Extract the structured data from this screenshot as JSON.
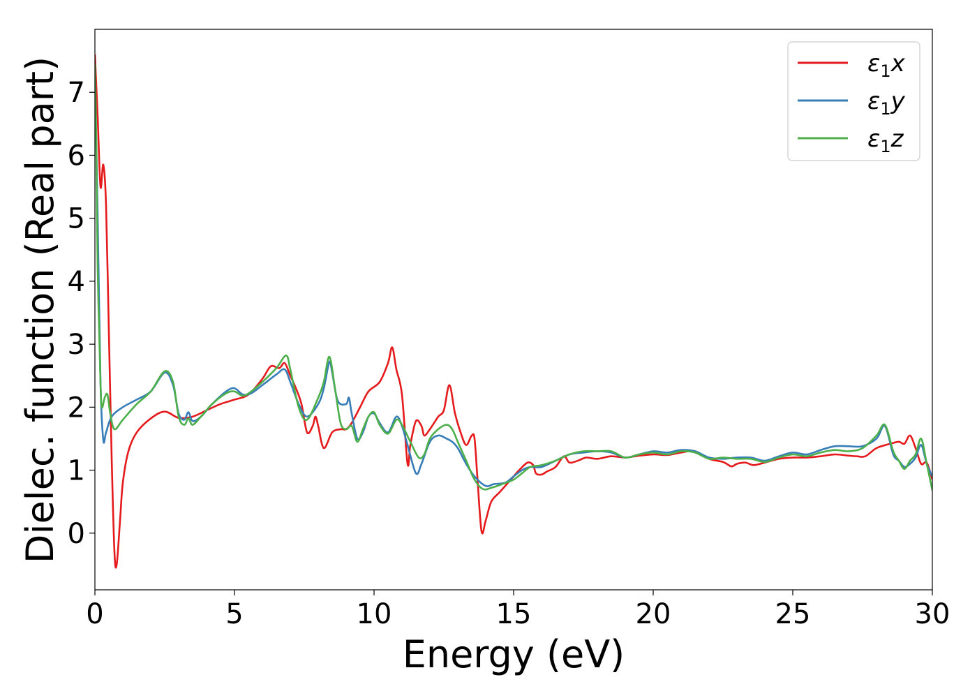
{
  "chart_data": {
    "type": "line",
    "title": "",
    "xlabel": "Energy (eV)",
    "ylabel": "Dielec. function (Real part)",
    "xlim": [
      0,
      30
    ],
    "ylim": [
      -0.9,
      8.0
    ],
    "xticks": [
      0,
      5,
      10,
      15,
      20,
      25,
      30
    ],
    "yticks": [
      0,
      1,
      2,
      3,
      4,
      5,
      6,
      7
    ],
    "grid": false,
    "legend_position": "top-right",
    "series": [
      {
        "name_symbol": "ε",
        "name_sub": "1",
        "name_axis": "x",
        "color": "#e41a1c",
        "points": [
          [
            0,
            7.6
          ],
          [
            0.1,
            6.6
          ],
          [
            0.2,
            5.5
          ],
          [
            0.3,
            5.85
          ],
          [
            0.4,
            5.2
          ],
          [
            0.5,
            3.2
          ],
          [
            0.6,
            1.2
          ],
          [
            0.7,
            -0.3
          ],
          [
            0.78,
            -0.5
          ],
          [
            0.9,
            0.2
          ],
          [
            1.0,
            0.8
          ],
          [
            1.2,
            1.3
          ],
          [
            1.5,
            1.6
          ],
          [
            2.0,
            1.82
          ],
          [
            2.5,
            1.93
          ],
          [
            3.0,
            1.83
          ],
          [
            3.5,
            1.85
          ],
          [
            4.0,
            1.95
          ],
          [
            4.5,
            2.05
          ],
          [
            5.0,
            2.12
          ],
          [
            5.5,
            2.2
          ],
          [
            6.0,
            2.45
          ],
          [
            6.3,
            2.65
          ],
          [
            6.6,
            2.62
          ],
          [
            6.8,
            2.7
          ],
          [
            7.0,
            2.5
          ],
          [
            7.2,
            2.3
          ],
          [
            7.4,
            2.05
          ],
          [
            7.6,
            1.6
          ],
          [
            7.8,
            1.7
          ],
          [
            7.9,
            1.85
          ],
          [
            8.0,
            1.7
          ],
          [
            8.2,
            1.35
          ],
          [
            8.5,
            1.6
          ],
          [
            8.8,
            1.65
          ],
          [
            9.0,
            1.65
          ],
          [
            9.2,
            1.75
          ],
          [
            9.5,
            2.0
          ],
          [
            9.8,
            2.25
          ],
          [
            10.2,
            2.4
          ],
          [
            10.5,
            2.7
          ],
          [
            10.65,
            2.95
          ],
          [
            10.8,
            2.6
          ],
          [
            11.0,
            2.2
          ],
          [
            11.2,
            1.1
          ],
          [
            11.3,
            1.4
          ],
          [
            11.5,
            1.78
          ],
          [
            11.7,
            1.7
          ],
          [
            11.8,
            1.55
          ],
          [
            12.0,
            1.65
          ],
          [
            12.3,
            1.85
          ],
          [
            12.5,
            1.95
          ],
          [
            12.7,
            2.35
          ],
          [
            12.9,
            1.9
          ],
          [
            13.1,
            1.6
          ],
          [
            13.3,
            1.4
          ],
          [
            13.5,
            1.55
          ],
          [
            13.6,
            1.5
          ],
          [
            13.7,
            0.9
          ],
          [
            13.85,
            0.03
          ],
          [
            14.0,
            0.2
          ],
          [
            14.2,
            0.5
          ],
          [
            14.5,
            0.65
          ],
          [
            14.8,
            0.8
          ],
          [
            15.0,
            0.9
          ],
          [
            15.2,
            1.0
          ],
          [
            15.5,
            1.12
          ],
          [
            15.7,
            1.08
          ],
          [
            15.8,
            0.95
          ],
          [
            16.0,
            0.93
          ],
          [
            16.2,
            0.98
          ],
          [
            16.5,
            1.05
          ],
          [
            16.8,
            1.22
          ],
          [
            17.0,
            1.12
          ],
          [
            17.3,
            1.15
          ],
          [
            17.6,
            1.2
          ],
          [
            18.0,
            1.18
          ],
          [
            18.5,
            1.22
          ],
          [
            19.0,
            1.2
          ],
          [
            19.5,
            1.23
          ],
          [
            20.0,
            1.25
          ],
          [
            20.5,
            1.24
          ],
          [
            21.0,
            1.28
          ],
          [
            21.5,
            1.3
          ],
          [
            22.0,
            1.18
          ],
          [
            22.5,
            1.13
          ],
          [
            22.8,
            1.06
          ],
          [
            23.0,
            1.1
          ],
          [
            23.3,
            1.12
          ],
          [
            23.6,
            1.08
          ],
          [
            24.0,
            1.12
          ],
          [
            24.5,
            1.18
          ],
          [
            25.0,
            1.2
          ],
          [
            25.5,
            1.2
          ],
          [
            26.0,
            1.22
          ],
          [
            26.5,
            1.25
          ],
          [
            27.0,
            1.23
          ],
          [
            27.3,
            1.22
          ],
          [
            27.6,
            1.22
          ],
          [
            28.0,
            1.35
          ],
          [
            28.5,
            1.42
          ],
          [
            28.8,
            1.45
          ],
          [
            29.0,
            1.42
          ],
          [
            29.2,
            1.55
          ],
          [
            29.4,
            1.35
          ],
          [
            29.6,
            1.1
          ],
          [
            29.8,
            1.12
          ],
          [
            30.0,
            0.85
          ]
        ]
      },
      {
        "name_symbol": "ε",
        "name_sub": "1",
        "name_axis": "y",
        "color": "#377eb8",
        "points": [
          [
            0,
            7.3
          ],
          [
            0.1,
            5.0
          ],
          [
            0.2,
            2.4
          ],
          [
            0.3,
            1.48
          ],
          [
            0.4,
            1.6
          ],
          [
            0.6,
            1.85
          ],
          [
            1.0,
            2.0
          ],
          [
            1.5,
            2.12
          ],
          [
            2.0,
            2.25
          ],
          [
            2.5,
            2.55
          ],
          [
            2.8,
            2.35
          ],
          [
            3.0,
            1.9
          ],
          [
            3.2,
            1.8
          ],
          [
            3.35,
            1.92
          ],
          [
            3.5,
            1.78
          ],
          [
            3.8,
            1.85
          ],
          [
            4.2,
            2.05
          ],
          [
            4.7,
            2.25
          ],
          [
            5.0,
            2.3
          ],
          [
            5.3,
            2.2
          ],
          [
            5.6,
            2.22
          ],
          [
            6.0,
            2.35
          ],
          [
            6.5,
            2.52
          ],
          [
            6.8,
            2.6
          ],
          [
            7.0,
            2.4
          ],
          [
            7.3,
            2.05
          ],
          [
            7.6,
            1.85
          ],
          [
            8.0,
            2.05
          ],
          [
            8.2,
            2.3
          ],
          [
            8.4,
            2.72
          ],
          [
            8.5,
            2.55
          ],
          [
            8.7,
            2.1
          ],
          [
            9.0,
            2.05
          ],
          [
            9.1,
            2.15
          ],
          [
            9.2,
            1.9
          ],
          [
            9.4,
            1.5
          ],
          [
            9.6,
            1.6
          ],
          [
            9.8,
            1.85
          ],
          [
            10.0,
            1.9
          ],
          [
            10.2,
            1.75
          ],
          [
            10.5,
            1.6
          ],
          [
            10.8,
            1.85
          ],
          [
            11.0,
            1.7
          ],
          [
            11.2,
            1.4
          ],
          [
            11.5,
            0.95
          ],
          [
            11.7,
            1.1
          ],
          [
            12.0,
            1.45
          ],
          [
            12.3,
            1.55
          ],
          [
            12.6,
            1.5
          ],
          [
            12.8,
            1.45
          ],
          [
            13.0,
            1.35
          ],
          [
            13.3,
            1.1
          ],
          [
            13.6,
            0.9
          ],
          [
            14.0,
            0.75
          ],
          [
            14.3,
            0.78
          ],
          [
            14.7,
            0.8
          ],
          [
            15.0,
            0.9
          ],
          [
            15.3,
            1.0
          ],
          [
            15.6,
            1.05
          ],
          [
            16.0,
            1.05
          ],
          [
            16.5,
            1.15
          ],
          [
            17.0,
            1.25
          ],
          [
            17.5,
            1.28
          ],
          [
            18.0,
            1.3
          ],
          [
            18.5,
            1.28
          ],
          [
            19.0,
            1.2
          ],
          [
            19.5,
            1.25
          ],
          [
            20.0,
            1.3
          ],
          [
            20.5,
            1.28
          ],
          [
            21.0,
            1.32
          ],
          [
            21.5,
            1.3
          ],
          [
            22.0,
            1.2
          ],
          [
            22.5,
            1.18
          ],
          [
            23.0,
            1.2
          ],
          [
            23.5,
            1.2
          ],
          [
            24.0,
            1.15
          ],
          [
            24.5,
            1.22
          ],
          [
            25.0,
            1.28
          ],
          [
            25.5,
            1.25
          ],
          [
            26.0,
            1.32
          ],
          [
            26.5,
            1.38
          ],
          [
            27.0,
            1.38
          ],
          [
            27.5,
            1.38
          ],
          [
            28.0,
            1.5
          ],
          [
            28.3,
            1.7
          ],
          [
            28.6,
            1.25
          ],
          [
            28.8,
            1.15
          ],
          [
            29.0,
            1.05
          ],
          [
            29.2,
            1.1
          ],
          [
            29.4,
            1.2
          ],
          [
            29.6,
            1.4
          ],
          [
            29.8,
            1.1
          ],
          [
            30.0,
            0.9
          ]
        ]
      },
      {
        "name_symbol": "ε",
        "name_sub": "1",
        "name_axis": "z",
        "color": "#4daf4a",
        "points": [
          [
            0,
            7.45
          ],
          [
            0.05,
            6.2
          ],
          [
            0.1,
            4.2
          ],
          [
            0.2,
            2.4
          ],
          [
            0.25,
            2.0
          ],
          [
            0.35,
            2.15
          ],
          [
            0.45,
            2.2
          ],
          [
            0.55,
            1.9
          ],
          [
            0.7,
            1.65
          ],
          [
            1.0,
            1.8
          ],
          [
            1.5,
            2.05
          ],
          [
            2.0,
            2.25
          ],
          [
            2.5,
            2.57
          ],
          [
            2.8,
            2.4
          ],
          [
            3.0,
            1.85
          ],
          [
            3.2,
            1.72
          ],
          [
            3.35,
            1.82
          ],
          [
            3.5,
            1.72
          ],
          [
            3.8,
            1.85
          ],
          [
            4.2,
            2.05
          ],
          [
            4.7,
            2.22
          ],
          [
            5.0,
            2.25
          ],
          [
            5.3,
            2.18
          ],
          [
            5.6,
            2.25
          ],
          [
            6.0,
            2.4
          ],
          [
            6.5,
            2.62
          ],
          [
            6.85,
            2.82
          ],
          [
            7.0,
            2.6
          ],
          [
            7.3,
            2.0
          ],
          [
            7.6,
            1.8
          ],
          [
            8.0,
            2.15
          ],
          [
            8.2,
            2.4
          ],
          [
            8.4,
            2.8
          ],
          [
            8.6,
            2.3
          ],
          [
            8.8,
            1.75
          ],
          [
            9.0,
            1.65
          ],
          [
            9.2,
            1.7
          ],
          [
            9.4,
            1.45
          ],
          [
            9.6,
            1.65
          ],
          [
            9.8,
            1.85
          ],
          [
            10.0,
            1.92
          ],
          [
            10.2,
            1.72
          ],
          [
            10.5,
            1.58
          ],
          [
            10.8,
            1.8
          ],
          [
            11.0,
            1.72
          ],
          [
            11.3,
            1.45
          ],
          [
            11.6,
            1.2
          ],
          [
            11.8,
            1.25
          ],
          [
            12.0,
            1.5
          ],
          [
            12.3,
            1.65
          ],
          [
            12.6,
            1.72
          ],
          [
            12.8,
            1.65
          ],
          [
            13.0,
            1.45
          ],
          [
            13.3,
            1.15
          ],
          [
            13.6,
            0.85
          ],
          [
            13.9,
            0.7
          ],
          [
            14.2,
            0.72
          ],
          [
            14.6,
            0.78
          ],
          [
            15.0,
            0.85
          ],
          [
            15.3,
            0.95
          ],
          [
            15.6,
            1.05
          ],
          [
            16.0,
            1.08
          ],
          [
            16.5,
            1.15
          ],
          [
            17.0,
            1.25
          ],
          [
            17.5,
            1.3
          ],
          [
            18.0,
            1.3
          ],
          [
            18.5,
            1.3
          ],
          [
            19.0,
            1.2
          ],
          [
            19.5,
            1.25
          ],
          [
            20.0,
            1.28
          ],
          [
            20.5,
            1.25
          ],
          [
            21.0,
            1.3
          ],
          [
            21.5,
            1.28
          ],
          [
            22.0,
            1.18
          ],
          [
            22.5,
            1.2
          ],
          [
            23.0,
            1.18
          ],
          [
            23.5,
            1.18
          ],
          [
            24.0,
            1.13
          ],
          [
            24.5,
            1.2
          ],
          [
            25.0,
            1.25
          ],
          [
            25.5,
            1.22
          ],
          [
            26.0,
            1.28
          ],
          [
            26.5,
            1.32
          ],
          [
            27.0,
            1.3
          ],
          [
            27.5,
            1.35
          ],
          [
            28.0,
            1.55
          ],
          [
            28.3,
            1.72
          ],
          [
            28.6,
            1.3
          ],
          [
            28.8,
            1.15
          ],
          [
            29.0,
            1.02
          ],
          [
            29.2,
            1.15
          ],
          [
            29.4,
            1.25
          ],
          [
            29.6,
            1.5
          ],
          [
            29.8,
            1.1
          ],
          [
            30.0,
            0.68
          ]
        ]
      }
    ]
  }
}
